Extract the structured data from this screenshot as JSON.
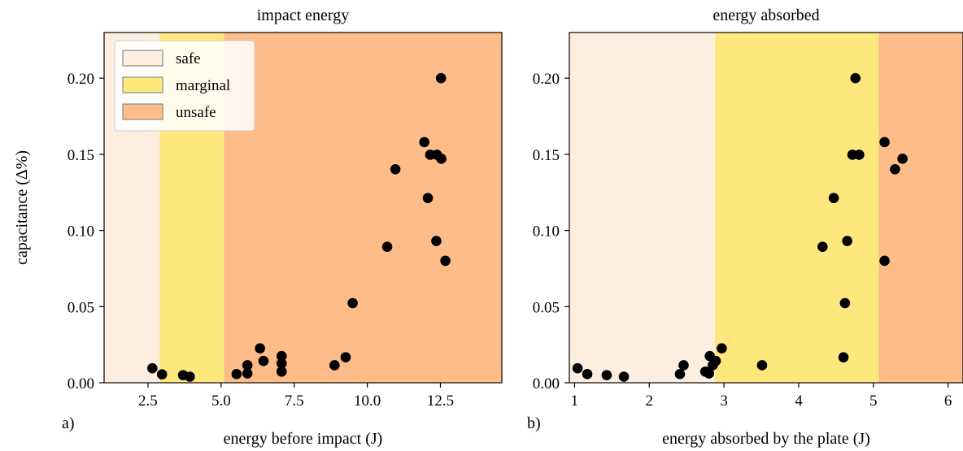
{
  "chart_data": [
    {
      "type": "scatter",
      "panel_label": "a)",
      "title": "impact energy",
      "xlabel": "energy before impact (J)",
      "ylabel": "capacitance (Δ%)",
      "xlim": [
        1.0,
        14.6
      ],
      "ylim": [
        0.0,
        0.23
      ],
      "xticks": [
        "2.5",
        "5.0",
        "7.5",
        "10.0",
        "12.5"
      ],
      "xtick_values": [
        2.5,
        5.0,
        7.5,
        10.0,
        12.5
      ],
      "yticks": [
        "0.00",
        "0.05",
        "0.10",
        "0.15",
        "0.20"
      ],
      "ytick_values": [
        0.0,
        0.05,
        0.1,
        0.15,
        0.2
      ],
      "grid": false,
      "legend_position": "top-left",
      "regions": [
        {
          "name": "safe",
          "from": 1.0,
          "to": 2.9,
          "color": "#fdeee0"
        },
        {
          "name": "marginal",
          "from": 2.9,
          "to": 5.1,
          "color": "#fee87e"
        },
        {
          "name": "unsafe",
          "from": 5.1,
          "to": 14.6,
          "color": "#fdbc88"
        }
      ],
      "points": [
        {
          "x": 2.65,
          "y": 0.0095
        },
        {
          "x": 2.98,
          "y": 0.0055
        },
        {
          "x": 3.7,
          "y": 0.005
        },
        {
          "x": 3.93,
          "y": 0.004
        },
        {
          "x": 5.53,
          "y": 0.0057
        },
        {
          "x": 5.9,
          "y": 0.0061
        },
        {
          "x": 5.9,
          "y": 0.0115
        },
        {
          "x": 6.33,
          "y": 0.0226
        },
        {
          "x": 6.45,
          "y": 0.0143
        },
        {
          "x": 7.07,
          "y": 0.0175
        },
        {
          "x": 7.07,
          "y": 0.0127
        },
        {
          "x": 7.07,
          "y": 0.0073
        },
        {
          "x": 8.88,
          "y": 0.0115
        },
        {
          "x": 9.26,
          "y": 0.0167
        },
        {
          "x": 9.5,
          "y": 0.0523
        },
        {
          "x": 10.68,
          "y": 0.0893
        },
        {
          "x": 10.96,
          "y": 0.1402
        },
        {
          "x": 11.95,
          "y": 0.158
        },
        {
          "x": 12.07,
          "y": 0.1213
        },
        {
          "x": 12.15,
          "y": 0.1497
        },
        {
          "x": 12.38,
          "y": 0.1497
        },
        {
          "x": 12.36,
          "y": 0.0931
        },
        {
          "x": 12.53,
          "y": 0.1471
        },
        {
          "x": 12.52,
          "y": 0.2
        },
        {
          "x": 12.67,
          "y": 0.0801
        }
      ]
    },
    {
      "type": "scatter",
      "panel_label": "b)",
      "title": "energy absorbed",
      "xlabel": "energy absorbed by the plate (J)",
      "ylabel": "",
      "xlim": [
        0.93,
        6.2
      ],
      "ylim": [
        0.0,
        0.23
      ],
      "xticks": [
        "1",
        "2",
        "3",
        "4",
        "5",
        "6"
      ],
      "xtick_values": [
        1,
        2,
        3,
        4,
        5,
        6
      ],
      "yticks": [
        "0.00",
        "0.05",
        "0.10",
        "0.15",
        "0.20"
      ],
      "ytick_values": [
        0.0,
        0.05,
        0.1,
        0.15,
        0.2
      ],
      "grid": false,
      "regions": [
        {
          "name": "safe",
          "from": 0.93,
          "to": 2.88,
          "color": "#fdeee0"
        },
        {
          "name": "marginal",
          "from": 2.88,
          "to": 5.07,
          "color": "#fee87e"
        },
        {
          "name": "unsafe",
          "from": 5.07,
          "to": 6.2,
          "color": "#fdbc88"
        }
      ],
      "points": [
        {
          "x": 1.04,
          "y": 0.0095
        },
        {
          "x": 1.17,
          "y": 0.0057
        },
        {
          "x": 1.43,
          "y": 0.005
        },
        {
          "x": 1.66,
          "y": 0.004
        },
        {
          "x": 2.41,
          "y": 0.0057
        },
        {
          "x": 2.46,
          "y": 0.0115
        },
        {
          "x": 2.75,
          "y": 0.0073
        },
        {
          "x": 2.8,
          "y": 0.0061
        },
        {
          "x": 2.81,
          "y": 0.0175
        },
        {
          "x": 2.85,
          "y": 0.0115
        },
        {
          "x": 2.89,
          "y": 0.0143
        },
        {
          "x": 2.97,
          "y": 0.0226
        },
        {
          "x": 3.51,
          "y": 0.0115
        },
        {
          "x": 4.32,
          "y": 0.0893
        },
        {
          "x": 4.47,
          "y": 0.1213
        },
        {
          "x": 4.6,
          "y": 0.0167
        },
        {
          "x": 4.62,
          "y": 0.0523
        },
        {
          "x": 4.65,
          "y": 0.0931
        },
        {
          "x": 4.72,
          "y": 0.1497
        },
        {
          "x": 4.76,
          "y": 0.2
        },
        {
          "x": 4.81,
          "y": 0.1497
        },
        {
          "x": 5.15,
          "y": 0.158
        },
        {
          "x": 5.15,
          "y": 0.0801
        },
        {
          "x": 5.29,
          "y": 0.1402
        },
        {
          "x": 5.39,
          "y": 0.1471
        }
      ]
    }
  ]
}
